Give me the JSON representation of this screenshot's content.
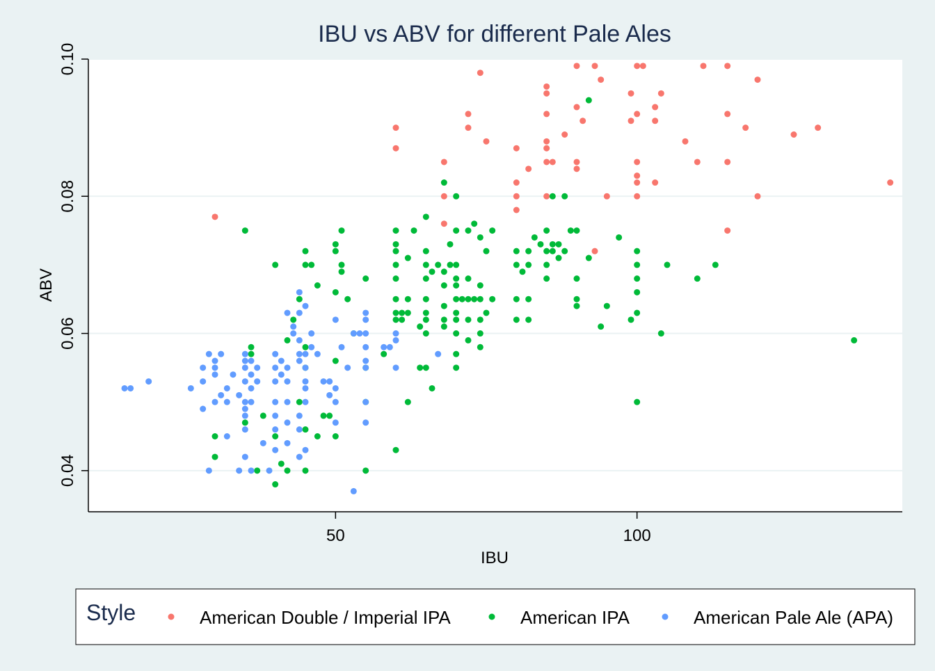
{
  "chart_data": {
    "type": "scatter",
    "title": "IBU vs ABV for different Pale Ales",
    "xlabel": "IBU",
    "ylabel": "ABV",
    "xlim": [
      9,
      144
    ],
    "ylim": [
      0.034,
      0.1
    ],
    "xticks": [
      50,
      100
    ],
    "yticks": [
      0.04,
      0.06,
      0.08,
      0.1
    ],
    "xtick_labels": [
      "50",
      "100"
    ],
    "ytick_labels": [
      "0.04",
      "0.06",
      "0.08",
      "0.10"
    ],
    "grid": true,
    "legend": {
      "title": "Style",
      "position": "bottom"
    },
    "series": [
      {
        "name": "American Double / Imperial IPA",
        "color": "#f8766d",
        "points": [
          [
            30,
            0.077
          ],
          [
            60,
            0.09
          ],
          [
            60,
            0.087
          ],
          [
            68,
            0.085
          ],
          [
            68,
            0.08
          ],
          [
            68,
            0.076
          ],
          [
            72,
            0.092
          ],
          [
            72,
            0.09
          ],
          [
            74,
            0.098
          ],
          [
            75,
            0.088
          ],
          [
            80,
            0.087
          ],
          [
            80,
            0.082
          ],
          [
            80,
            0.08
          ],
          [
            80,
            0.078
          ],
          [
            82,
            0.084
          ],
          [
            85,
            0.096
          ],
          [
            85,
            0.095
          ],
          [
            85,
            0.092
          ],
          [
            85,
            0.088
          ],
          [
            85,
            0.087
          ],
          [
            85,
            0.085
          ],
          [
            86,
            0.085
          ],
          [
            85,
            0.08
          ],
          [
            88,
            0.089
          ],
          [
            90,
            0.099
          ],
          [
            90,
            0.093
          ],
          [
            90,
            0.085
          ],
          [
            90,
            0.084
          ],
          [
            91,
            0.091
          ],
          [
            93,
            0.099
          ],
          [
            93,
            0.072
          ],
          [
            94,
            0.097
          ],
          [
            95,
            0.08
          ],
          [
            99,
            0.095
          ],
          [
            99,
            0.091
          ],
          [
            100,
            0.099
          ],
          [
            101,
            0.099
          ],
          [
            100,
            0.092
          ],
          [
            100,
            0.085
          ],
          [
            100,
            0.083
          ],
          [
            100,
            0.082
          ],
          [
            100,
            0.08
          ],
          [
            103,
            0.093
          ],
          [
            103,
            0.091
          ],
          [
            103,
            0.082
          ],
          [
            104,
            0.095
          ],
          [
            108,
            0.088
          ],
          [
            110,
            0.085
          ],
          [
            111,
            0.099
          ],
          [
            115,
            0.099
          ],
          [
            115,
            0.092
          ],
          [
            115,
            0.085
          ],
          [
            115,
            0.075
          ],
          [
            118,
            0.09
          ],
          [
            120,
            0.097
          ],
          [
            120,
            0.08
          ],
          [
            126,
            0.089
          ],
          [
            130,
            0.09
          ],
          [
            142,
            0.082
          ]
        ]
      },
      {
        "name": "American IPA",
        "color": "#00ba38",
        "points": [
          [
            30,
            0.045
          ],
          [
            30,
            0.042
          ],
          [
            35,
            0.075
          ],
          [
            35,
            0.047
          ],
          [
            36,
            0.058
          ],
          [
            36,
            0.057
          ],
          [
            37,
            0.04
          ],
          [
            38,
            0.048
          ],
          [
            40,
            0.07
          ],
          [
            40,
            0.045
          ],
          [
            40,
            0.038
          ],
          [
            41,
            0.041
          ],
          [
            42,
            0.04
          ],
          [
            42,
            0.059
          ],
          [
            43,
            0.062
          ],
          [
            44,
            0.065
          ],
          [
            44,
            0.05
          ],
          [
            45,
            0.072
          ],
          [
            45,
            0.07
          ],
          [
            45,
            0.058
          ],
          [
            45,
            0.055
          ],
          [
            45,
            0.046
          ],
          [
            45,
            0.04
          ],
          [
            46,
            0.07
          ],
          [
            47,
            0.067
          ],
          [
            47,
            0.045
          ],
          [
            48,
            0.048
          ],
          [
            49,
            0.048
          ],
          [
            50,
            0.073
          ],
          [
            50,
            0.072
          ],
          [
            50,
            0.066
          ],
          [
            50,
            0.056
          ],
          [
            50,
            0.045
          ],
          [
            51,
            0.075
          ],
          [
            51,
            0.07
          ],
          [
            51,
            0.069
          ],
          [
            52,
            0.065
          ],
          [
            53,
            0.06
          ],
          [
            55,
            0.068
          ],
          [
            55,
            0.055
          ],
          [
            55,
            0.05
          ],
          [
            55,
            0.04
          ],
          [
            58,
            0.057
          ],
          [
            60,
            0.075
          ],
          [
            60,
            0.073
          ],
          [
            60,
            0.072
          ],
          [
            60,
            0.07
          ],
          [
            60,
            0.068
          ],
          [
            60,
            0.065
          ],
          [
            60,
            0.063
          ],
          [
            60,
            0.062
          ],
          [
            60,
            0.043
          ],
          [
            61,
            0.063
          ],
          [
            61,
            0.062
          ],
          [
            62,
            0.071
          ],
          [
            62,
            0.065
          ],
          [
            62,
            0.063
          ],
          [
            62,
            0.05
          ],
          [
            63,
            0.075
          ],
          [
            64,
            0.055
          ],
          [
            64,
            0.061
          ],
          [
            65,
            0.055
          ],
          [
            65,
            0.077
          ],
          [
            65,
            0.072
          ],
          [
            65,
            0.07
          ],
          [
            65,
            0.068
          ],
          [
            65,
            0.065
          ],
          [
            65,
            0.063
          ],
          [
            65,
            0.062
          ],
          [
            65,
            0.06
          ],
          [
            66,
            0.052
          ],
          [
            66,
            0.069
          ],
          [
            67,
            0.07
          ],
          [
            68,
            0.069
          ],
          [
            68,
            0.067
          ],
          [
            68,
            0.064
          ],
          [
            68,
            0.062
          ],
          [
            68,
            0.061
          ],
          [
            68,
            0.082
          ],
          [
            69,
            0.07
          ],
          [
            69,
            0.073
          ],
          [
            70,
            0.08
          ],
          [
            70,
            0.075
          ],
          [
            70,
            0.07
          ],
          [
            70,
            0.068
          ],
          [
            70,
            0.067
          ],
          [
            70,
            0.065
          ],
          [
            70,
            0.063
          ],
          [
            70,
            0.062
          ],
          [
            70,
            0.06
          ],
          [
            70,
            0.057
          ],
          [
            70,
            0.055
          ],
          [
            71,
            0.065
          ],
          [
            72,
            0.075
          ],
          [
            72,
            0.068
          ],
          [
            72,
            0.065
          ],
          [
            72,
            0.062
          ],
          [
            72,
            0.059
          ],
          [
            73,
            0.076
          ],
          [
            73,
            0.065
          ],
          [
            74,
            0.074
          ],
          [
            74,
            0.067
          ],
          [
            74,
            0.065
          ],
          [
            74,
            0.062
          ],
          [
            74,
            0.06
          ],
          [
            74,
            0.058
          ],
          [
            75,
            0.072
          ],
          [
            75,
            0.063
          ],
          [
            76,
            0.075
          ],
          [
            76,
            0.065
          ],
          [
            80,
            0.072
          ],
          [
            80,
            0.07
          ],
          [
            80,
            0.065
          ],
          [
            80,
            0.062
          ],
          [
            81,
            0.069
          ],
          [
            82,
            0.072
          ],
          [
            82,
            0.07
          ],
          [
            82,
            0.065
          ],
          [
            82,
            0.062
          ],
          [
            83,
            0.074
          ],
          [
            84,
            0.073
          ],
          [
            85,
            0.075
          ],
          [
            85,
            0.072
          ],
          [
            85,
            0.07
          ],
          [
            85,
            0.068
          ],
          [
            86,
            0.08
          ],
          [
            86,
            0.073
          ],
          [
            86,
            0.072
          ],
          [
            87,
            0.071
          ],
          [
            87,
            0.073
          ],
          [
            88,
            0.08
          ],
          [
            88,
            0.072
          ],
          [
            89,
            0.075
          ],
          [
            90,
            0.075
          ],
          [
            90,
            0.068
          ],
          [
            90,
            0.065
          ],
          [
            90,
            0.064
          ],
          [
            92,
            0.094
          ],
          [
            92,
            0.071
          ],
          [
            94,
            0.061
          ],
          [
            95,
            0.064
          ],
          [
            97,
            0.074
          ],
          [
            99,
            0.062
          ],
          [
            100,
            0.072
          ],
          [
            100,
            0.07
          ],
          [
            100,
            0.068
          ],
          [
            100,
            0.066
          ],
          [
            100,
            0.063
          ],
          [
            100,
            0.05
          ],
          [
            104,
            0.06
          ],
          [
            105,
            0.07
          ],
          [
            110,
            0.068
          ],
          [
            113,
            0.07
          ],
          [
            136,
            0.059
          ]
        ]
      },
      {
        "name": "American Pale Ale (APA)",
        "color": "#619cff",
        "points": [
          [
            15,
            0.052
          ],
          [
            16,
            0.052
          ],
          [
            19,
            0.053
          ],
          [
            26,
            0.052
          ],
          [
            28,
            0.055
          ],
          [
            28,
            0.053
          ],
          [
            28,
            0.049
          ],
          [
            29,
            0.057
          ],
          [
            29,
            0.04
          ],
          [
            30,
            0.056
          ],
          [
            30,
            0.055
          ],
          [
            30,
            0.054
          ],
          [
            30,
            0.05
          ],
          [
            31,
            0.057
          ],
          [
            31,
            0.051
          ],
          [
            32,
            0.052
          ],
          [
            32,
            0.05
          ],
          [
            32,
            0.045
          ],
          [
            33,
            0.054
          ],
          [
            34,
            0.04
          ],
          [
            34,
            0.051
          ],
          [
            35,
            0.057
          ],
          [
            35,
            0.056
          ],
          [
            35,
            0.055
          ],
          [
            35,
            0.053
          ],
          [
            35,
            0.05
          ],
          [
            35,
            0.049
          ],
          [
            35,
            0.048
          ],
          [
            35,
            0.046
          ],
          [
            35,
            0.042
          ],
          [
            36,
            0.056
          ],
          [
            36,
            0.054
          ],
          [
            36,
            0.052
          ],
          [
            36,
            0.05
          ],
          [
            36,
            0.04
          ],
          [
            37,
            0.053
          ],
          [
            37,
            0.055
          ],
          [
            38,
            0.044
          ],
          [
            39,
            0.04
          ],
          [
            40,
            0.057
          ],
          [
            40,
            0.055
          ],
          [
            40,
            0.053
          ],
          [
            40,
            0.05
          ],
          [
            40,
            0.048
          ],
          [
            40,
            0.046
          ],
          [
            40,
            0.043
          ],
          [
            41,
            0.056
          ],
          [
            41,
            0.054
          ],
          [
            42,
            0.055
          ],
          [
            42,
            0.053
          ],
          [
            42,
            0.05
          ],
          [
            42,
            0.047
          ],
          [
            42,
            0.044
          ],
          [
            42,
            0.063
          ],
          [
            43,
            0.061
          ],
          [
            43,
            0.06
          ],
          [
            44,
            0.066
          ],
          [
            44,
            0.063
          ],
          [
            44,
            0.059
          ],
          [
            44,
            0.057
          ],
          [
            44,
            0.056
          ],
          [
            44,
            0.048
          ],
          [
            44,
            0.046
          ],
          [
            44,
            0.042
          ],
          [
            45,
            0.064
          ],
          [
            45,
            0.057
          ],
          [
            45,
            0.055
          ],
          [
            45,
            0.053
          ],
          [
            45,
            0.052
          ],
          [
            45,
            0.05
          ],
          [
            45,
            0.043
          ],
          [
            46,
            0.06
          ],
          [
            46,
            0.058
          ],
          [
            47,
            0.057
          ],
          [
            48,
            0.053
          ],
          [
            49,
            0.053
          ],
          [
            49,
            0.051
          ],
          [
            50,
            0.052
          ],
          [
            50,
            0.05
          ],
          [
            50,
            0.047
          ],
          [
            50,
            0.062
          ],
          [
            51,
            0.058
          ],
          [
            52,
            0.055
          ],
          [
            53,
            0.06
          ],
          [
            54,
            0.06
          ],
          [
            55,
            0.063
          ],
          [
            55,
            0.062
          ],
          [
            55,
            0.06
          ],
          [
            55,
            0.058
          ],
          [
            55,
            0.056
          ],
          [
            55,
            0.055
          ],
          [
            55,
            0.05
          ],
          [
            55,
            0.047
          ],
          [
            53,
            0.037
          ],
          [
            58,
            0.058
          ],
          [
            59,
            0.058
          ],
          [
            60,
            0.06
          ],
          [
            60,
            0.059
          ],
          [
            60,
            0.055
          ],
          [
            67,
            0.057
          ]
        ]
      }
    ]
  }
}
